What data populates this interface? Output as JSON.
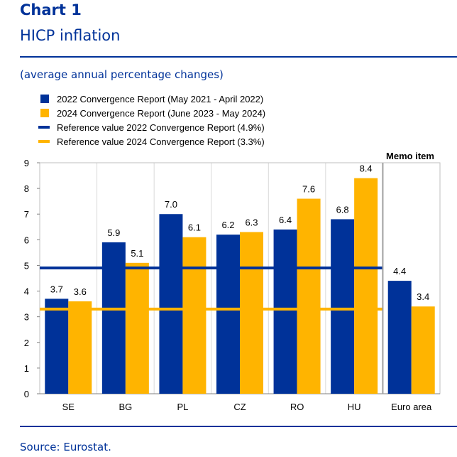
{
  "header": {
    "chart_number": "Chart 1",
    "title": "HICP inflation",
    "subtitle": "(average annual percentage changes)"
  },
  "footer": {
    "source": "Source: Eurostat."
  },
  "colors": {
    "brand": "#003299",
    "series_2022": "#003299",
    "series_2024": "#ffb400",
    "separator": "#a0a0a0",
    "grid": "#d9d9d9"
  },
  "chart_data": {
    "type": "bar",
    "categories": [
      "SE",
      "BG",
      "PL",
      "CZ",
      "RO",
      "HU",
      "Euro area"
    ],
    "series": [
      {
        "name": "2022 Convergence Report (May 2021 - April 2022)",
        "values": [
          3.7,
          5.9,
          7.0,
          6.2,
          6.4,
          6.8,
          4.4
        ]
      },
      {
        "name": "2024 Convergence Report (June 2023 - May 2024)",
        "values": [
          3.6,
          5.1,
          6.1,
          6.3,
          7.6,
          8.4,
          3.4
        ]
      }
    ],
    "reference_lines": [
      {
        "name": "Reference value 2022 Convergence Report (4.9%)",
        "value": 4.9
      },
      {
        "name": "Reference value 2024 Convergence Report (3.3%)",
        "value": 3.3
      }
    ],
    "memo_label": "Memo item",
    "ylim": [
      0,
      9
    ],
    "yticks": [
      0,
      1,
      2,
      3,
      4,
      5,
      6,
      7,
      8,
      9
    ],
    "grid": true,
    "legend_position": "top-left"
  }
}
